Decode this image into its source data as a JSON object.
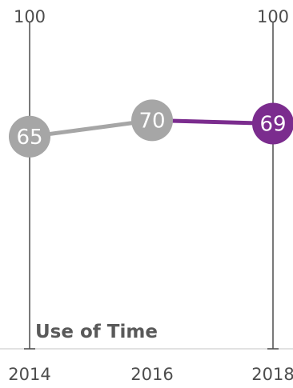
{
  "chart_data": {
    "type": "line",
    "title": "Use of Time",
    "xlabel": "",
    "ylabel": "",
    "ylim": [
      0,
      100
    ],
    "y_axis_labels": [
      "100",
      "100"
    ],
    "categories": [
      "2014",
      "2016",
      "2018"
    ],
    "series": [
      {
        "values": [
          65,
          70,
          69
        ]
      }
    ],
    "data_labels": [
      "65",
      "70",
      "69"
    ],
    "colors": {
      "past": "#a6a6a6",
      "highlight": "#7b2c8e",
      "axis": "#4d4d4d",
      "baseline": "#d9d9d9",
      "label_text": "#ffffff",
      "title_text": "#595959",
      "tick_text": "#4d4d4d"
    },
    "grid": false,
    "legend": "none"
  }
}
